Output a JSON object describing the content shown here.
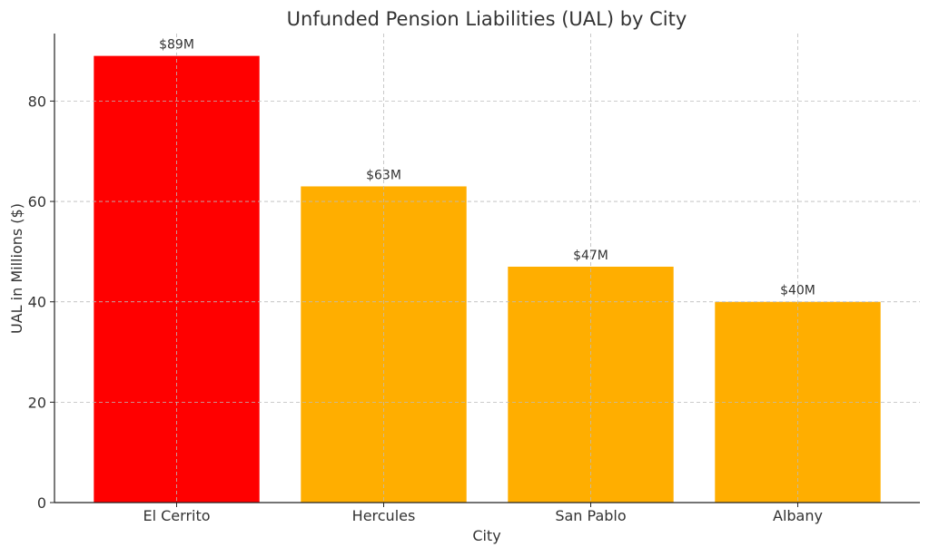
{
  "chart_data": {
    "type": "bar",
    "title": "Unfunded Pension Liabilities (UAL) by City",
    "xlabel": "City",
    "ylabel": "UAL in Millions ($)",
    "categories": [
      "El Cerrito",
      "Hercules",
      "San Pablo",
      "Albany"
    ],
    "values": [
      89,
      63,
      47,
      40
    ],
    "data_labels": [
      "$89M",
      "$63M",
      "$47M",
      "$40M"
    ],
    "bar_colors": [
      "#ff0000",
      "#ffae00",
      "#ffae00",
      "#ffae00"
    ],
    "ylim": [
      0,
      93.45
    ],
    "yticks": [
      0,
      20,
      40,
      60,
      80
    ],
    "grid": true,
    "legend": "none"
  }
}
